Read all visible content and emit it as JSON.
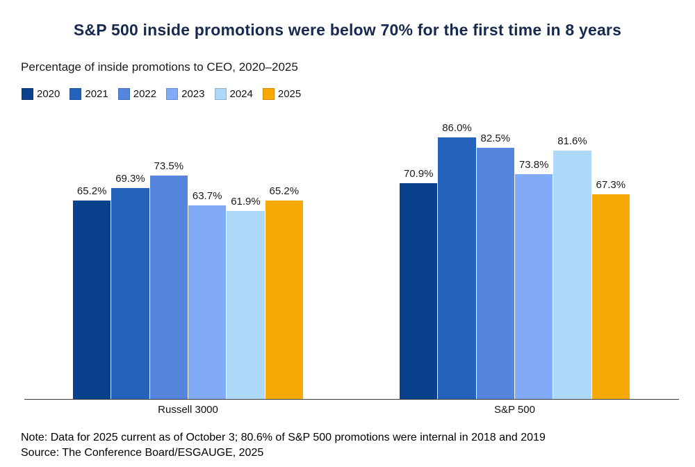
{
  "title": "S&P 500 inside promotions were below 70% for the first time in 8 years",
  "subtitle": "Percentage of inside promotions to CEO, 2020–2025",
  "note": "Note: Data for 2025 current as of October 3; 80.6% of S&P 500 promotions were internal in 2018 and 2019",
  "source": "Source: The Conference Board/ESGAUGE, 2025",
  "title_color": "#16294e",
  "chart_data": {
    "type": "bar",
    "categories": [
      "Russell 3000",
      "S&P 500"
    ],
    "series": [
      {
        "name": "2020",
        "color": "#0a418c",
        "values": [
          65.2,
          70.9
        ]
      },
      {
        "name": "2021",
        "color": "#2562ba",
        "values": [
          69.3,
          86.0
        ]
      },
      {
        "name": "2022",
        "color": "#5585dc",
        "values": [
          73.5,
          82.5
        ]
      },
      {
        "name": "2023",
        "color": "#82abf7",
        "values": [
          63.7,
          73.8
        ]
      },
      {
        "name": "2024",
        "color": "#aed8f8",
        "values": [
          61.9,
          81.6
        ]
      },
      {
        "name": "2025",
        "color": "#f8a905",
        "values": [
          65.2,
          67.3
        ]
      }
    ],
    "value_suffix": "%",
    "value_decimals": 1,
    "ylim": [
      0,
      100
    ],
    "grid": false,
    "legend_position": "top-left",
    "xlabel": "",
    "ylabel": ""
  }
}
